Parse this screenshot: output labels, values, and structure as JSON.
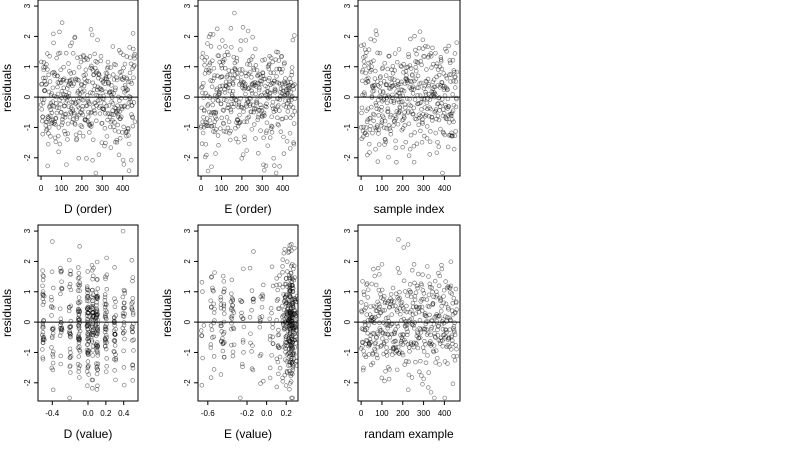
{
  "figure": {
    "background": "#ffffff",
    "point_color": "#000000"
  },
  "chart_data": [
    {
      "type": "scatter",
      "xlabel": "D (order)",
      "ylabel": "residuals",
      "xlim": [
        -15,
        475
      ],
      "ylim": [
        -2.6,
        3.2
      ],
      "xticks": [
        0,
        100,
        200,
        300,
        400
      ],
      "xtick_labels": [
        "0",
        "100",
        "200",
        "300",
        "400"
      ],
      "yticks": [
        -2,
        -1,
        0,
        1,
        2,
        3
      ],
      "ytick_labels": [
        "-2",
        "-1",
        "0",
        "1",
        "2",
        "3"
      ],
      "hline": 0,
      "points": {
        "generator": "sequential",
        "n": 460,
        "x_range": [
          0,
          460
        ],
        "y_mean": 0,
        "y_sd": 0.9,
        "y_min": -2.5,
        "y_max": 3.0,
        "seed": 11
      }
    },
    {
      "type": "scatter",
      "xlabel": "E (order)",
      "ylabel": "residuals",
      "xlim": [
        -15,
        475
      ],
      "ylim": [
        -2.6,
        3.2
      ],
      "xticks": [
        0,
        100,
        200,
        300,
        400
      ],
      "xtick_labels": [
        "0",
        "100",
        "200",
        "300",
        "400"
      ],
      "yticks": [
        -2,
        -1,
        0,
        1,
        2,
        3
      ],
      "ytick_labels": [
        "-2",
        "-1",
        "0",
        "1",
        "2",
        "3"
      ],
      "hline": 0,
      "points": {
        "generator": "sequential",
        "n": 460,
        "x_range": [
          0,
          460
        ],
        "y_mean": 0,
        "y_sd": 0.9,
        "y_min": -2.5,
        "y_max": 3.0,
        "seed": 23
      }
    },
    {
      "type": "scatter",
      "xlabel": "sample index",
      "ylabel": "residuals",
      "xlim": [
        -15,
        475
      ],
      "ylim": [
        -2.6,
        3.2
      ],
      "xticks": [
        0,
        100,
        200,
        300,
        400
      ],
      "xtick_labels": [
        "0",
        "100",
        "200",
        "300",
        "400"
      ],
      "yticks": [
        -2,
        -1,
        0,
        1,
        2,
        3
      ],
      "ytick_labels": [
        "-2",
        "-1",
        "0",
        "1",
        "2",
        "3"
      ],
      "hline": 0,
      "points": {
        "generator": "sequential",
        "n": 460,
        "x_range": [
          0,
          460
        ],
        "y_mean": 0,
        "y_sd": 0.9,
        "y_min": -2.5,
        "y_max": 3.0,
        "seed": 37
      }
    },
    {
      "type": "scatter",
      "xlabel": "D (value)",
      "ylabel": "residuals",
      "xlim": [
        -0.56,
        0.56
      ],
      "ylim": [
        -2.6,
        3.2
      ],
      "xticks": [
        -0.4,
        0.0,
        0.2,
        0.4
      ],
      "xtick_labels": [
        "-0.4",
        "0.0",
        "0.2",
        "0.4"
      ],
      "yticks": [
        -2,
        -1,
        0,
        1,
        2,
        3
      ],
      "ytick_labels": [
        "-2",
        "-1",
        "0",
        "1",
        "2",
        "3"
      ],
      "hline": 0,
      "points": {
        "generator": "columns",
        "n": 460,
        "columns": [
          -0.5,
          -0.4,
          -0.3,
          -0.2,
          -0.1,
          0.0,
          0.05,
          0.1,
          0.2,
          0.3,
          0.4,
          0.5
        ],
        "weights": [
          4,
          3,
          3,
          4,
          7,
          8,
          6,
          8,
          5,
          4,
          3,
          3
        ],
        "jitter": 0.012,
        "y_mean": 0,
        "y_sd": 0.9,
        "y_min": -2.5,
        "y_max": 3.0,
        "seed": 51
      }
    },
    {
      "type": "scatter",
      "xlabel": "E (value)",
      "ylabel": "residuals",
      "xlim": [
        -0.7,
        0.32
      ],
      "ylim": [
        -2.6,
        3.2
      ],
      "xticks": [
        -0.6,
        -0.2,
        0.0,
        0.2
      ],
      "xtick_labels": [
        "-0.6",
        "-0.2",
        "0.0",
        "0.2"
      ],
      "yticks": [
        -2,
        -1,
        0,
        1,
        2,
        3
      ],
      "ytick_labels": [
        "-2",
        "-1",
        "0",
        "1",
        "2",
        "3"
      ],
      "hline": 0,
      "points": {
        "generator": "columns",
        "n": 460,
        "columns": [
          -0.65,
          -0.55,
          -0.45,
          -0.35,
          -0.25,
          -0.15,
          -0.05,
          0.05,
          0.12,
          0.18,
          0.22,
          0.25,
          0.27,
          0.3
        ],
        "weights": [
          1,
          3,
          4,
          3,
          2,
          2,
          2,
          2,
          3,
          6,
          8,
          12,
          9,
          3
        ],
        "jitter": 0.02,
        "y_mean": 0,
        "y_sd": 0.9,
        "y_min": -2.5,
        "y_max": 3.0,
        "seed": 67
      }
    },
    {
      "type": "scatter",
      "xlabel": "randam example",
      "ylabel": "residuals",
      "xlim": [
        -15,
        475
      ],
      "ylim": [
        -2.6,
        3.2
      ],
      "xticks": [
        0,
        100,
        200,
        300,
        400
      ],
      "xtick_labels": [
        "0",
        "100",
        "200",
        "300",
        "400"
      ],
      "yticks": [
        -2,
        -1,
        0,
        1,
        2,
        3
      ],
      "ytick_labels": [
        "-2",
        "-1",
        "0",
        "1",
        "2",
        "3"
      ],
      "hline": 0,
      "points": {
        "generator": "sequential",
        "n": 460,
        "x_range": [
          0,
          460
        ],
        "y_mean": 0,
        "y_sd": 0.9,
        "y_min": -2.5,
        "y_max": 3.2,
        "seed": 89
      }
    }
  ]
}
